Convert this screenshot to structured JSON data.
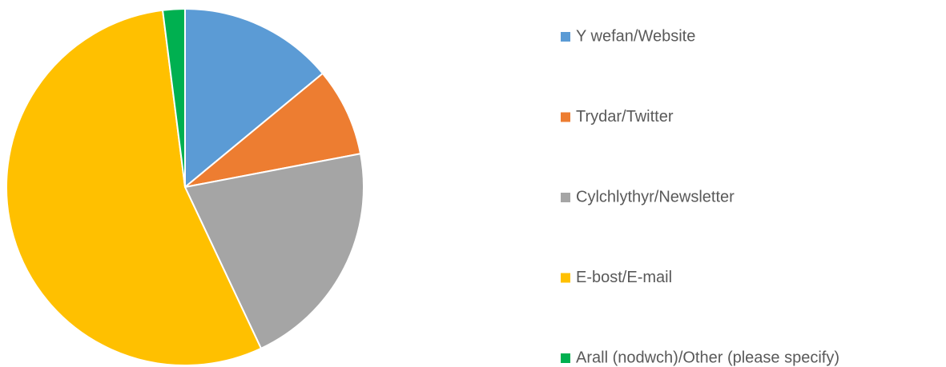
{
  "chart_data": {
    "type": "pie",
    "categories": [
      "Y wefan/Website",
      "Trydar/Twitter",
      "Cylchlythyr/Newsletter",
      "E-bost/E-mail",
      "Arall (nodwch)/Other (please specify)"
    ],
    "values": [
      14,
      8,
      21,
      55,
      2
    ],
    "colors": [
      "#5b9bd5",
      "#ed7d31",
      "#a5a5a5",
      "#ffc000",
      "#00b050"
    ],
    "legend": "right"
  }
}
